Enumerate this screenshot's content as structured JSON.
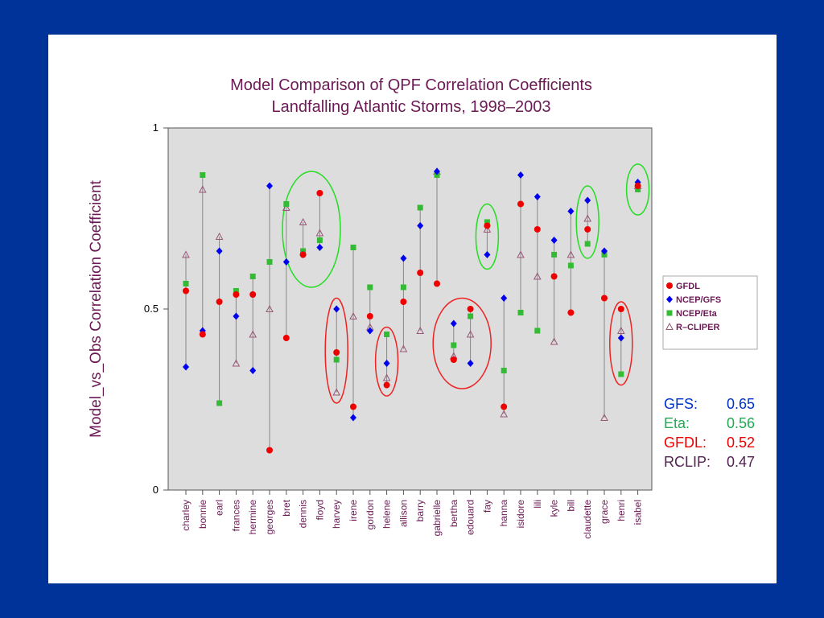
{
  "chart_data": {
    "type": "scatter",
    "title": "Model Comparison of QPF Correlation Coefficients",
    "subtitle": "Landfalling Atlantic Storms, 1998–2003",
    "ylabel": "Model_vs_Obs Correlation Coefficient",
    "xlabel": "",
    "ylim": [
      0,
      1
    ],
    "yticks": [
      "0",
      "0.5",
      "1"
    ],
    "categories": [
      "charley",
      "bonnie",
      "earl",
      "frances",
      "hermine",
      "georges",
      "bret",
      "dennis",
      "floyd",
      "harvey",
      "irene",
      "gordon",
      "helene",
      "allison",
      "barry",
      "gabrielle",
      "bertha",
      "edouard",
      "fay",
      "hanna",
      "isidore",
      "lili",
      "kyle",
      "bill",
      "claudette",
      "grace",
      "henri",
      "isabel"
    ],
    "series": [
      {
        "name": "GFDL",
        "color": "#ee0000",
        "marker": "circle",
        "values": [
          0.55,
          0.43,
          0.52,
          0.54,
          0.54,
          0.11,
          0.42,
          0.65,
          0.82,
          0.38,
          0.23,
          0.48,
          0.29,
          0.52,
          0.6,
          0.57,
          0.36,
          0.5,
          0.73,
          0.23,
          0.79,
          0.72,
          0.59,
          0.49,
          0.72,
          0.53,
          0.5,
          0.84
        ]
      },
      {
        "name": "NCEP/GFS",
        "color": "#0000ee",
        "marker": "diamond",
        "values": [
          0.34,
          0.44,
          0.66,
          0.48,
          0.33,
          0.84,
          0.63,
          0.65,
          0.67,
          0.5,
          0.2,
          0.44,
          0.35,
          0.64,
          0.73,
          0.88,
          0.46,
          0.35,
          0.65,
          0.53,
          0.87,
          0.81,
          0.69,
          0.77,
          0.8,
          0.66,
          0.42,
          0.85
        ]
      },
      {
        "name": "NCEP/Eta",
        "color": "#33bb33",
        "marker": "square",
        "values": [
          0.57,
          0.87,
          0.24,
          0.55,
          0.59,
          0.63,
          0.79,
          0.66,
          0.69,
          0.36,
          0.67,
          0.56,
          0.43,
          0.56,
          0.78,
          0.87,
          0.4,
          0.48,
          0.74,
          0.33,
          0.49,
          0.44,
          0.65,
          0.62,
          0.68,
          0.65,
          0.32,
          0.83
        ]
      },
      {
        "name": "R–CLIPER",
        "color": "#995577",
        "marker": "triangle",
        "values": [
          0.65,
          0.83,
          0.7,
          0.35,
          0.43,
          0.5,
          0.78,
          0.74,
          0.71,
          0.27,
          0.48,
          0.45,
          0.31,
          0.39,
          0.44,
          0.88,
          0.37,
          0.43,
          0.72,
          0.21,
          0.65,
          0.59,
          0.41,
          0.65,
          0.75,
          0.2,
          0.44,
          0.84
        ]
      }
    ],
    "highlights": [
      {
        "category": "dennis",
        "span": 2,
        "low": 0.56,
        "high": 0.88,
        "color": "#22dd22"
      },
      {
        "category": "harvey",
        "low": 0.24,
        "high": 0.53,
        "color": "#ee2222"
      },
      {
        "category": "helene",
        "low": 0.26,
        "high": 0.45,
        "color": "#ee2222"
      },
      {
        "category": "bertha",
        "span": 2,
        "low": 0.28,
        "high": 0.53,
        "color": "#ee2222"
      },
      {
        "category": "fay",
        "low": 0.61,
        "high": 0.79,
        "color": "#22dd22"
      },
      {
        "category": "claudette",
        "low": 0.64,
        "high": 0.84,
        "color": "#22dd22"
      },
      {
        "category": "henri",
        "low": 0.29,
        "high": 0.52,
        "color": "#ee2222"
      },
      {
        "category": "isabel",
        "low": 0.76,
        "high": 0.9,
        "color": "#22dd22"
      }
    ],
    "grid": false,
    "legend_position": "right",
    "background_color": "#dddddd"
  },
  "summary": [
    {
      "label": "GFS:",
      "value": "0.65",
      "color": "#0033cc"
    },
    {
      "label": "Eta:",
      "value": "0.56",
      "color": "#22aa55"
    },
    {
      "label": "GFDL:",
      "value": "0.52",
      "color": "#ee0000"
    },
    {
      "label": "RCLIP:",
      "value": "0.47",
      "color": "#552255"
    }
  ]
}
